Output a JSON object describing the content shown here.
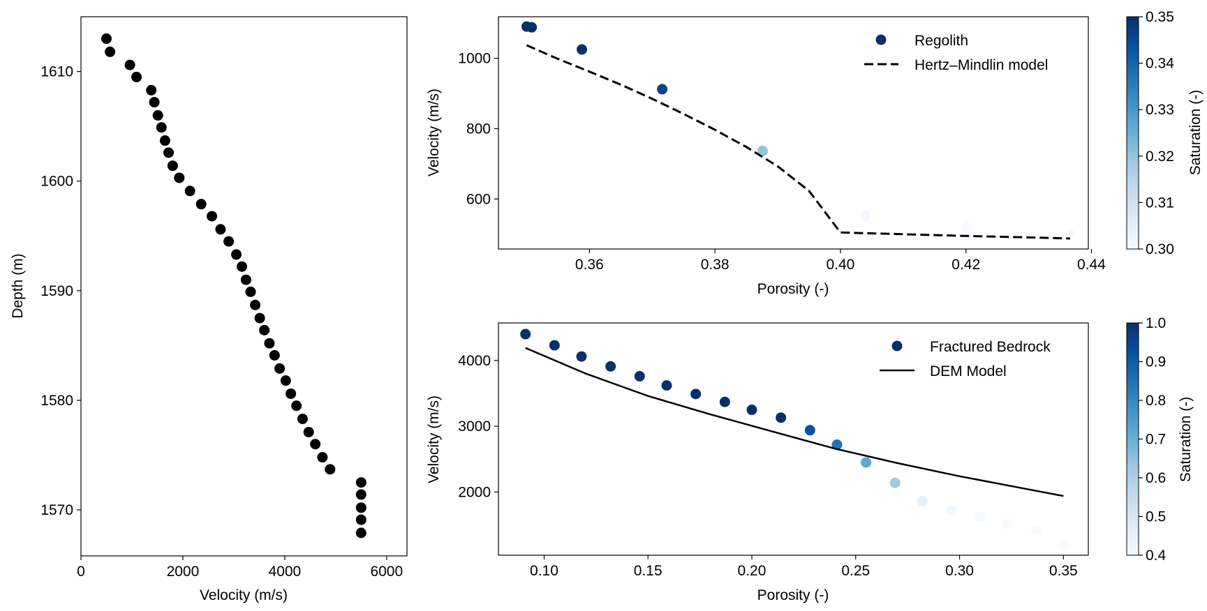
{
  "colors": {
    "point_black": "#000000",
    "cmap_low": "#f7fbff",
    "cmap_mid": "#6baed6",
    "cmap_high": "#08306b",
    "line": "#000000"
  },
  "chart_data": [
    {
      "id": "depth-profile",
      "type": "scatter",
      "xlabel": "Velocity (m/s)",
      "ylabel": "Depth (m)",
      "xlim": [
        0,
        6400
      ],
      "ylim": [
        1565.8,
        1615.0
      ],
      "y_inverted": true,
      "xticks": [
        0,
        2000,
        4000,
        6000
      ],
      "xtick_labels": [
        "0",
        "2000",
        "4000",
        "6000"
      ],
      "yticks": [
        1570,
        1580,
        1590,
        1600,
        1610
      ],
      "ytick_labels": [
        "1570",
        "1580",
        "1590",
        "1600",
        "1610"
      ],
      "series": [
        {
          "name": "velocity-depth",
          "x": [
            500,
            570,
            960,
            1090,
            1380,
            1440,
            1510,
            1580,
            1650,
            1720,
            1800,
            1930,
            2140,
            2360,
            2570,
            2740,
            2900,
            3050,
            3160,
            3240,
            3330,
            3420,
            3510,
            3600,
            3700,
            3800,
            3900,
            4020,
            4120,
            4230,
            4350,
            4470,
            4600,
            4740,
            4890,
            5500,
            5500,
            5500,
            5500,
            5500
          ],
          "y": [
            1613.0,
            1611.8,
            1610.6,
            1609.5,
            1608.3,
            1607.2,
            1606.0,
            1604.9,
            1603.7,
            1602.6,
            1601.4,
            1600.3,
            1599.1,
            1597.9,
            1596.8,
            1595.6,
            1594.5,
            1593.3,
            1592.2,
            1591.0,
            1589.9,
            1588.7,
            1587.5,
            1586.4,
            1585.2,
            1584.1,
            1582.9,
            1581.8,
            1580.6,
            1579.5,
            1578.3,
            1577.1,
            1576.0,
            1574.8,
            1573.7,
            1572.5,
            1571.4,
            1570.2,
            1569.1,
            1567.9
          ]
        }
      ]
    },
    {
      "id": "regolith",
      "type": "scatter",
      "xlabel": "Porosity (-)",
      "ylabel": "Velocity (m/s)",
      "xlim": [
        0.3455,
        0.4395
      ],
      "ylim": [
        458,
        1118
      ],
      "xticks": [
        0.36,
        0.38,
        0.4,
        0.42,
        0.44
      ],
      "xtick_labels": [
        "0.36",
        "0.38",
        "0.40",
        "0.42",
        "0.44"
      ],
      "yticks": [
        600,
        800,
        1000
      ],
      "ytick_labels": [
        "600",
        "800",
        "1000"
      ],
      "legend_position": "top-right",
      "series": [
        {
          "name": "Regolith",
          "kind": "points",
          "x": [
            0.35,
            0.3508,
            0.3588,
            0.3716,
            0.3876,
            0.404,
            0.4202,
            0.4366
          ],
          "y": [
            1090,
            1088,
            1025,
            912,
            737,
            553,
            520,
            500
          ],
          "saturation": [
            0.35,
            0.35,
            0.35,
            0.346,
            0.32,
            0.301,
            0.3,
            0.3
          ]
        },
        {
          "name": "Hertz–Mindlin model",
          "kind": "line",
          "style": "dashed",
          "x": [
            0.35,
            0.355,
            0.36,
            0.365,
            0.37,
            0.375,
            0.38,
            0.385,
            0.39,
            0.395,
            0.4,
            0.41,
            0.42,
            0.43,
            0.4366
          ],
          "y": [
            1037,
            998,
            962,
            925,
            885,
            842,
            797,
            748,
            693,
            623,
            505,
            500,
            495,
            491,
            488
          ]
        }
      ],
      "colorbar": {
        "label": "Saturation (-)",
        "vmin": 0.3,
        "vmax": 0.35,
        "ticks": [
          "0.30",
          "0.31",
          "0.32",
          "0.33",
          "0.34",
          "0.35"
        ]
      }
    },
    {
      "id": "fractured-bedrock",
      "type": "scatter",
      "xlabel": "Porosity (-)",
      "ylabel": "Velocity (m/s)",
      "xlim": [
        0.078,
        0.362
      ],
      "ylim": [
        1040,
        4570
      ],
      "xticks": [
        0.1,
        0.15,
        0.2,
        0.25,
        0.3,
        0.35
      ],
      "xtick_labels": [
        "0.10",
        "0.15",
        "0.20",
        "0.25",
        "0.30",
        "0.35"
      ],
      "yticks": [
        2000,
        3000,
        4000
      ],
      "ytick_labels": [
        "2000",
        "3000",
        "4000"
      ],
      "legend_position": "top-right",
      "series": [
        {
          "name": "Fractured Bedrock",
          "kind": "points",
          "x": [
            0.091,
            0.105,
            0.118,
            0.132,
            0.146,
            0.159,
            0.173,
            0.187,
            0.2,
            0.214,
            0.228,
            0.241,
            0.255,
            0.269,
            0.282,
            0.296,
            0.31,
            0.323,
            0.337,
            0.35
          ],
          "y": [
            4400,
            4230,
            4060,
            3910,
            3760,
            3620,
            3490,
            3370,
            3250,
            3130,
            2940,
            2720,
            2450,
            2140,
            1860,
            1720,
            1620,
            1520,
            1420,
            1180
          ],
          "saturation": [
            1.0,
            1.0,
            1.0,
            1.0,
            1.0,
            1.0,
            1.0,
            1.0,
            1.0,
            1.0,
            0.92,
            0.85,
            0.72,
            0.62,
            0.45,
            0.42,
            0.41,
            0.4,
            0.4,
            0.4
          ]
        },
        {
          "name": "DEM Model",
          "kind": "line",
          "style": "solid",
          "x": [
            0.091,
            0.12,
            0.15,
            0.18,
            0.21,
            0.24,
            0.27,
            0.3,
            0.33,
            0.35
          ],
          "y": [
            4190,
            3800,
            3460,
            3180,
            2920,
            2660,
            2440,
            2240,
            2060,
            1940
          ]
        }
      ],
      "colorbar": {
        "label": "Saturation (-)",
        "vmin": 0.4,
        "vmax": 1.0,
        "ticks": [
          "0.4",
          "0.5",
          "0.6",
          "0.7",
          "0.8",
          "0.9",
          "1.0"
        ]
      }
    }
  ]
}
